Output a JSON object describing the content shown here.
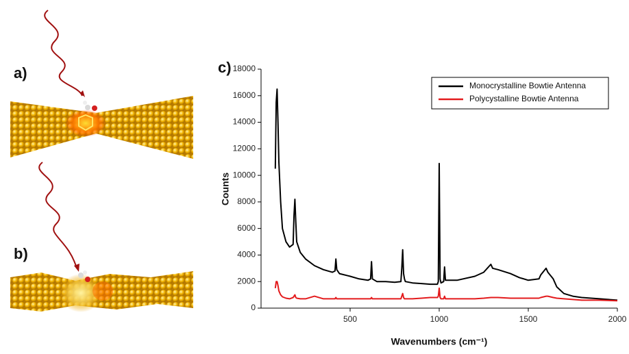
{
  "panels": [
    "a)",
    "b)"
  ],
  "chart_data": {
    "type": "line",
    "panel_label": "c)",
    "x_label": "Wavenumbers (cm⁻¹)",
    "y_label": "Counts",
    "xlim": [
      0,
      2000
    ],
    "xticks": [
      500,
      1000,
      1500,
      2000
    ],
    "ylim": [
      0,
      18000
    ],
    "yticks": [
      0,
      2000,
      4000,
      6000,
      8000,
      10000,
      12000,
      14000,
      16000,
      18000
    ],
    "legend": "upper right",
    "x": [
      80,
      85,
      90,
      95,
      100,
      110,
      120,
      140,
      160,
      180,
      185,
      190,
      195,
      200,
      220,
      250,
      300,
      350,
      400,
      415,
      420,
      425,
      440,
      500,
      550,
      600,
      615,
      620,
      625,
      650,
      700,
      750,
      785,
      790,
      795,
      800,
      805,
      810,
      850,
      900,
      950,
      990,
      995,
      1000,
      1005,
      1010,
      1025,
      1030,
      1035,
      1100,
      1200,
      1250,
      1290,
      1300,
      1330,
      1400,
      1450,
      1500,
      1560,
      1570,
      1600,
      1610,
      1640,
      1660,
      1700,
      1750,
      1800,
      1900,
      2000
    ],
    "series": [
      {
        "name": "Monocrystalline Bowtie Antenna",
        "color": "#000000",
        "values": [
          10500,
          15500,
          16500,
          14000,
          11000,
          8000,
          6000,
          5000,
          4600,
          4800,
          7000,
          8200,
          6500,
          5000,
          4200,
          3700,
          3200,
          2900,
          2700,
          2800,
          3700,
          2900,
          2600,
          2400,
          2200,
          2100,
          2200,
          3500,
          2200,
          2000,
          2000,
          1950,
          2000,
          3000,
          4400,
          2600,
          2200,
          2000,
          1900,
          1850,
          1800,
          1800,
          2000,
          10900,
          2200,
          1900,
          2000,
          3100,
          2100,
          2100,
          2400,
          2700,
          3300,
          3000,
          2900,
          2600,
          2300,
          2100,
          2200,
          2500,
          3000,
          2700,
          2200,
          1600,
          1100,
          900,
          800,
          700,
          600
        ]
      },
      {
        "name": "Polycystalline Bowtie Antenna",
        "color": "#e31a1c",
        "values": [
          1500,
          2000,
          2000,
          1700,
          1300,
          1000,
          850,
          750,
          700,
          800,
          900,
          1000,
          800,
          750,
          700,
          700,
          900,
          700,
          700,
          700,
          800,
          700,
          700,
          700,
          700,
          700,
          700,
          800,
          700,
          700,
          700,
          700,
          700,
          900,
          1100,
          800,
          700,
          700,
          700,
          750,
          800,
          800,
          900,
          1500,
          800,
          700,
          700,
          900,
          700,
          700,
          700,
          750,
          800,
          800,
          800,
          750,
          750,
          750,
          750,
          800,
          900,
          900,
          800,
          750,
          700,
          650,
          600,
          600,
          550
        ]
      }
    ]
  }
}
